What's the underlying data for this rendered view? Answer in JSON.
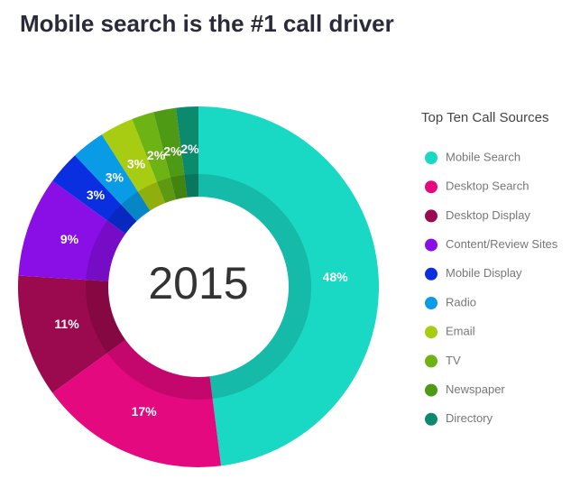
{
  "chart_data": {
    "type": "donut",
    "title": "Mobile search is the #1 call driver",
    "center_label": "2015",
    "legend_title": "Top Ten Call Sources",
    "categories": [
      "Mobile Search",
      "Desktop Search",
      "Desktop Display",
      "Content/Review Sites",
      "Mobile Display",
      "Radio",
      "Email",
      "TV",
      "Newspaper",
      "Directory"
    ],
    "values": [
      48,
      17,
      11,
      9,
      3,
      3,
      3,
      2,
      2,
      2
    ],
    "value_labels": [
      "48%",
      "17%",
      "11%",
      "9%",
      "3%",
      "3%",
      "3%",
      "2%",
      "2%",
      "2%"
    ],
    "colors": [
      "#19d9c4",
      "#e5097f",
      "#9b0a4e",
      "#8a0ee6",
      "#0a2fe0",
      "#0a9be6",
      "#a8cc12",
      "#6db314",
      "#4f9a14",
      "#0b8a6e"
    ],
    "legend": "right"
  }
}
